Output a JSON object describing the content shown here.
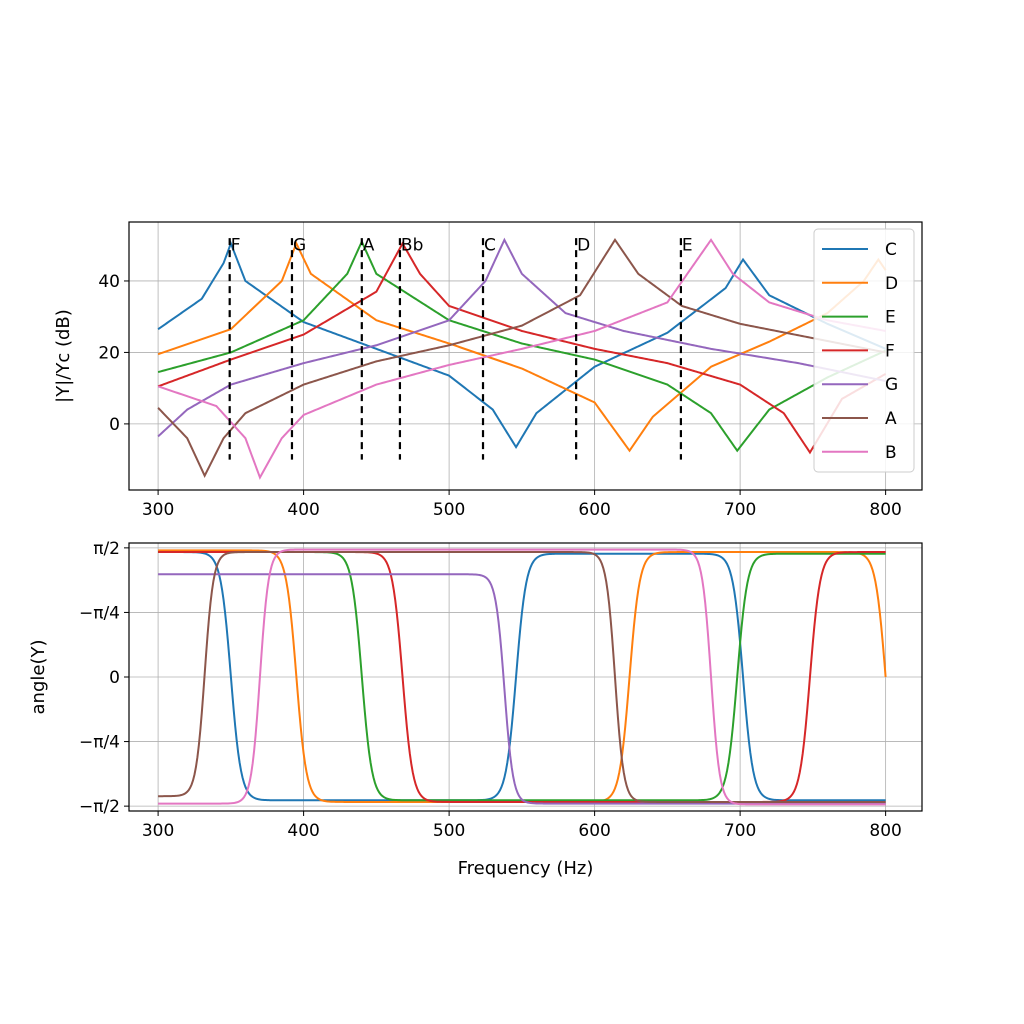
{
  "chart_data": [
    {
      "type": "line",
      "xlabel": "",
      "ylabel": "|Y|/Yc (dB)",
      "xlim": [
        280,
        825
      ],
      "ylim": [
        -18.5,
        56.5
      ],
      "xticks": [
        "300",
        "400",
        "500",
        "600",
        "700",
        "800"
      ],
      "yticks": [
        "0",
        "20",
        "40"
      ],
      "grid": true,
      "legend_position": "top-right",
      "series": [
        {
          "name": "C",
          "color": "#1f77b4",
          "peaks": [
            [
              350,
              50.5
            ],
            [
              702,
              46
            ]
          ],
          "dips": [
            [
              546,
              -6.5
            ]
          ],
          "values": [
            [
              300,
              26.5
            ],
            [
              330,
              35
            ],
            [
              345,
              45
            ],
            [
              350,
              50.5
            ],
            [
              360,
              40
            ],
            [
              400,
              28.5
            ],
            [
              450,
              21
            ],
            [
              500,
              13.5
            ],
            [
              530,
              4
            ],
            [
              546,
              -6.5
            ],
            [
              560,
              3
            ],
            [
              600,
              16
            ],
            [
              650,
              25.5
            ],
            [
              690,
              38
            ],
            [
              702,
              46
            ],
            [
              720,
              36
            ],
            [
              760,
              28
            ],
            [
              800,
              21
            ]
          ]
        },
        {
          "name": "D",
          "color": "#ff7f0e",
          "peaks": [
            [
              395,
              50.5
            ],
            [
              795,
              46
            ]
          ],
          "dips": [
            [
              624,
              -7.5
            ]
          ],
          "values": [
            [
              300,
              19.5
            ],
            [
              350,
              26.5
            ],
            [
              385,
              40
            ],
            [
              395,
              50.5
            ],
            [
              405,
              42
            ],
            [
              450,
              29
            ],
            [
              500,
              22.5
            ],
            [
              550,
              15.5
            ],
            [
              600,
              6
            ],
            [
              624,
              -7.5
            ],
            [
              640,
              2
            ],
            [
              680,
              16
            ],
            [
              720,
              23
            ],
            [
              760,
              31
            ],
            [
              785,
              40
            ],
            [
              795,
              46
            ],
            [
              800,
              43
            ]
          ]
        },
        {
          "name": "E",
          "color": "#2ca02c",
          "peaks": [
            [
              440,
              51
            ]
          ],
          "dips": [
            [
              698,
              -7.5
            ]
          ],
          "values": [
            [
              300,
              14.5
            ],
            [
              350,
              20
            ],
            [
              400,
              29
            ],
            [
              430,
              42
            ],
            [
              440,
              51
            ],
            [
              450,
              42
            ],
            [
              500,
              29
            ],
            [
              550,
              22.5
            ],
            [
              600,
              18
            ],
            [
              650,
              11
            ],
            [
              680,
              3
            ],
            [
              698,
              -7.5
            ],
            [
              720,
              4
            ],
            [
              760,
              13
            ],
            [
              800,
              20.5
            ]
          ]
        },
        {
          "name": "F",
          "color": "#d62728",
          "peaks": [
            [
              468,
              50.5
            ]
          ],
          "dips": [
            [
              748,
              -8
            ]
          ],
          "values": [
            [
              300,
              10.5
            ],
            [
              350,
              18
            ],
            [
              400,
              25
            ],
            [
              450,
              37
            ],
            [
              468,
              50.5
            ],
            [
              480,
              42
            ],
            [
              500,
              33
            ],
            [
              550,
              26
            ],
            [
              600,
              21
            ],
            [
              650,
              17
            ],
            [
              700,
              11
            ],
            [
              730,
              3
            ],
            [
              748,
              -8
            ],
            [
              770,
              7
            ],
            [
              800,
              14
            ]
          ]
        },
        {
          "name": "G",
          "color": "#9467bd",
          "peaks": [
            [
              538,
              51.5
            ]
          ],
          "dips": [],
          "values": [
            [
              300,
              -3.5
            ],
            [
              320,
              4
            ],
            [
              350,
              11
            ],
            [
              400,
              17
            ],
            [
              450,
              22
            ],
            [
              500,
              29
            ],
            [
              525,
              40
            ],
            [
              538,
              51.5
            ],
            [
              550,
              42
            ],
            [
              580,
              31
            ],
            [
              620,
              26
            ],
            [
              680,
              21
            ],
            [
              740,
              17
            ],
            [
              800,
              12
            ]
          ]
        },
        {
          "name": "A",
          "color": "#8c564b",
          "peaks": [
            [
              614,
              51.5
            ]
          ],
          "dips": [
            [
              332,
              -14.5
            ]
          ],
          "values": [
            [
              300,
              4.5
            ],
            [
              320,
              -4
            ],
            [
              332,
              -14.5
            ],
            [
              345,
              -4
            ],
            [
              360,
              3
            ],
            [
              400,
              11
            ],
            [
              450,
              17.5
            ],
            [
              500,
              22
            ],
            [
              550,
              27.5
            ],
            [
              590,
              36
            ],
            [
              614,
              51.5
            ],
            [
              630,
              42
            ],
            [
              660,
              33
            ],
            [
              700,
              28
            ],
            [
              750,
              24
            ],
            [
              800,
              20
            ]
          ]
        },
        {
          "name": "B",
          "color": "#e377c2",
          "peaks": [
            [
              680,
              51.5
            ]
          ],
          "dips": [
            [
              370,
              -15
            ]
          ],
          "values": [
            [
              300,
              10.5
            ],
            [
              340,
              5
            ],
            [
              360,
              -4
            ],
            [
              370,
              -15
            ],
            [
              385,
              -4
            ],
            [
              400,
              2.5
            ],
            [
              450,
              11
            ],
            [
              500,
              16.5
            ],
            [
              550,
              21
            ],
            [
              600,
              26
            ],
            [
              650,
              34
            ],
            [
              680,
              51.5
            ],
            [
              695,
              42
            ],
            [
              720,
              34
            ],
            [
              760,
              29
            ],
            [
              800,
              26
            ]
          ]
        }
      ],
      "markers": [
        {
          "label": "F",
          "x": 349.2
        },
        {
          "label": "G",
          "x": 392
        },
        {
          "label": "A",
          "x": 440
        },
        {
          "label": "Bb",
          "x": 466.2
        },
        {
          "label": "C",
          "x": 523.3
        },
        {
          "label": "D",
          "x": 587.3
        },
        {
          "label": "E",
          "x": 659.3
        }
      ]
    },
    {
      "type": "line",
      "xlabel": "Frequency (Hz)",
      "ylabel": "angle(Y)",
      "xlim": [
        280,
        825
      ],
      "ylim": [
        -1.63,
        1.63
      ],
      "yticks": [
        "−π/2",
        "−π/4",
        "0",
        "−π/4",
        "π/2"
      ],
      "xticks": [
        "300",
        "400",
        "500",
        "600",
        "700",
        "800"
      ],
      "grid": true,
      "note": "phase transitions follow the resonances and anti-resonances of the upper panel",
      "series": [
        {
          "name": "C",
          "color": "#1f77b4",
          "start": 1.52,
          "transitions": [
            [
              350,
              -1
            ],
            [
              546,
              1
            ],
            [
              702,
              -1
            ]
          ],
          "width": 7,
          "amp": 1.5,
          "end": -1.5
        },
        {
          "name": "D",
          "color": "#ff7f0e",
          "start": 1.54,
          "transitions": [
            [
              395,
              -1
            ],
            [
              624,
              1
            ],
            [
              800,
              -1
            ]
          ],
          "width": 7,
          "amp": 1.52,
          "end": -0.72
        },
        {
          "name": "E",
          "color": "#2ca02c",
          "start": 1.52,
          "transitions": [
            [
              440,
              -1
            ],
            [
              698,
              1
            ]
          ],
          "width": 7,
          "amp": 1.5,
          "end": 1.48
        },
        {
          "name": "F",
          "color": "#d62728",
          "start": 1.52,
          "transitions": [
            [
              468,
              -1
            ],
            [
              748,
              1
            ]
          ],
          "width": 7,
          "amp": 1.52,
          "end": 1.44
        },
        {
          "name": "G",
          "color": "#9467bd",
          "start": 1.25,
          "transitions": [
            [
              538,
              -1
            ]
          ],
          "width": 6,
          "amp": 1.54,
          "end": -1.52
        },
        {
          "name": "A",
          "color": "#8c564b",
          "start": -1.45,
          "transitions": [
            [
              332,
              1
            ],
            [
              614,
              -1
            ]
          ],
          "width": 6,
          "amp": 1.52,
          "end": -1.55
        },
        {
          "name": "B",
          "color": "#e377c2",
          "start": -1.54,
          "transitions": [
            [
              370,
              1
            ],
            [
              680,
              -1
            ]
          ],
          "width": 6,
          "amp": 1.55,
          "end": -1.56
        }
      ]
    }
  ]
}
